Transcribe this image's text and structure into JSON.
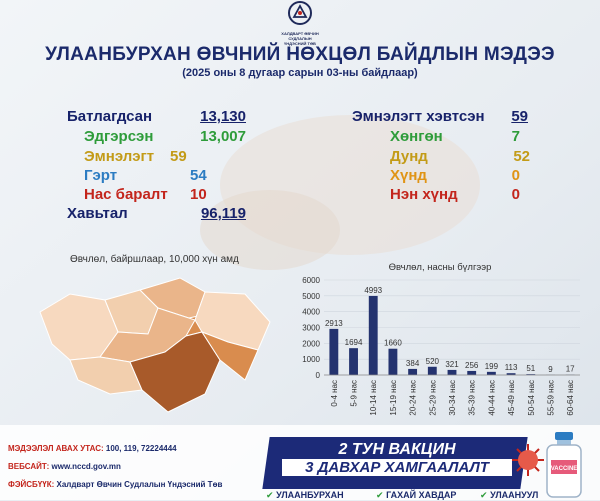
{
  "header": {
    "logo_line1": "ХАЛДВАРТ ӨВЧИН СУДЛАЛЫН",
    "logo_line2": "ҮНДЭСНИЙ ТӨВ",
    "title": "УЛААНБУРХАН ӨВЧНИЙ НӨХЦӨЛ БАЙДЛЫН МЭДЭЭ",
    "subtitle": "(2025 оны 8 дугаар сарын 03-ны байдлаар)"
  },
  "left_stats": {
    "confirmed_label": "Батлагдсан",
    "confirmed_value": "13,130",
    "recovered_label": "Эдгэрсэн",
    "recovered_value": "13,007",
    "hospital_label": "Эмнэлэгт",
    "hospital_value": "59",
    "home_label": "Гэрт",
    "home_value": "54",
    "death_label": "Нас баралт",
    "death_value": "10",
    "contact_label": "Хавьтал",
    "contact_value": "96,119"
  },
  "right_stats": {
    "hospitalized_label": "Эмнэлэгт хэвтсэн",
    "hospitalized_value": "59",
    "mild_label": "Хөнгөн",
    "mild_value": "7",
    "moderate_label": "Дунд",
    "moderate_value": "52",
    "severe_label": "Хүнд",
    "severe_value": "0",
    "critical_label": "Нэн хүнд",
    "critical_value": "0"
  },
  "map": {
    "caption": "Өвчлөл, байршлаар, 10,000 хүн амд",
    "colors": {
      "light": "#f7d9bf",
      "mid": "#eab58a",
      "dark": "#d98c4e",
      "darkest": "#a85a2a"
    }
  },
  "chart_data": {
    "type": "bar",
    "title": "Өвчлөл, насны бүлгээр",
    "categories": [
      "0-4 нас",
      "5-9 нас",
      "10-14 нас",
      "15-19 нас",
      "20-24 нас",
      "25-29 нас",
      "30-34 нас",
      "35-39 нас",
      "40-44 нас",
      "45-49 нас",
      "50-54 нас",
      "55-59 нас",
      "60-64 нас"
    ],
    "values": [
      2913,
      1694,
      4993,
      1660,
      384,
      520,
      321,
      256,
      199,
      113,
      51,
      9,
      17
    ],
    "ylim": [
      0,
      6000
    ],
    "yticks": [
      "0",
      "1000",
      "2000",
      "3000",
      "4000",
      "5000",
      "6000"
    ],
    "bar_color": "#24336f",
    "grid": true
  },
  "footer": {
    "phone_label": "МЭДЭЭЛЭЛ АВАХ УТАС:",
    "phone_value": "100, 119, 72224444",
    "web_label": "ВЕБСАЙТ:",
    "web_value": "www.nccd.gov.mn",
    "fb_label": "ФЭЙСБҮҮК:",
    "fb_value": "Халдварт Өвчин Судлалын Үндэсний Төв",
    "banner_line1": "2 ТУН ВАКЦИН",
    "banner_line2": "3 ДАВХАР ХАМГААЛАЛТ",
    "bullet1": "УЛААНБУРХАН",
    "bullet2": "ГАХАЙ ХАВДАР",
    "bullet3": "УЛААНУУЛ",
    "vaccine_label": "VACCINE"
  }
}
